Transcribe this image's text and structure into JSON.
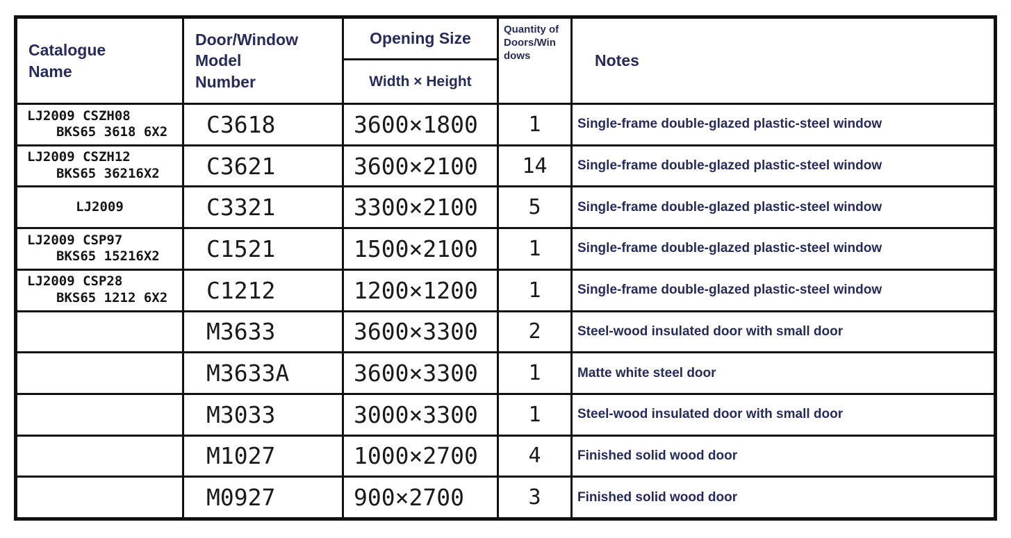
{
  "colors": {
    "header_text": "#272b5c",
    "notes_text": "#272b5c",
    "cad_text": "#1a1a1a",
    "border": "#111111",
    "background": "#ffffff"
  },
  "table": {
    "headers": {
      "catalogue_lines": [
        "Catalogue",
        "Name"
      ],
      "model_lines": [
        "Door/Window",
        "Model",
        "Number"
      ],
      "opening_size": "Opening Size",
      "width_height": "Width × Height",
      "quantity": "Quantity of Doors/Windows",
      "notes": "Notes"
    },
    "rows": [
      {
        "catalogue": [
          "LJ2009 CSZH08",
          "BKS65 3618 6X2"
        ],
        "model": "C3618",
        "size": "3600×1800",
        "qty": "1",
        "note": "Single-frame double-glazed plastic-steel window"
      },
      {
        "catalogue": [
          "LJ2009 CSZH12",
          "BKS65 36216X2"
        ],
        "model": "C3621",
        "size": "3600×2100",
        "qty": "14",
        "note": "Single-frame double-glazed plastic-steel window"
      },
      {
        "catalogue": [
          "LJ2009"
        ],
        "model": "C3321",
        "size": "3300×2100",
        "qty": "5",
        "note": "Single-frame double-glazed plastic-steel window"
      },
      {
        "catalogue": [
          "LJ2009 CSP97",
          "BKS65 15216X2"
        ],
        "model": "C1521",
        "size": "1500×2100",
        "qty": "1",
        "note": "Single-frame double-glazed plastic-steel window"
      },
      {
        "catalogue": [
          "LJ2009 CSP28",
          "BKS65 1212 6X2"
        ],
        "model": "C1212",
        "size": "1200×1200",
        "qty": "1",
        "note": "Single-frame double-glazed plastic-steel window"
      },
      {
        "catalogue": [],
        "model": "M3633",
        "size": "3600×3300",
        "qty": "2",
        "note": "Steel-wood insulated door with small door"
      },
      {
        "catalogue": [],
        "model": "M3633A",
        "size": "3600×3300",
        "qty": "1",
        "note": "Matte white steel door"
      },
      {
        "catalogue": [],
        "model": "M3033",
        "size": "3000×3300",
        "qty": "1",
        "note": "Steel-wood insulated door with small door"
      },
      {
        "catalogue": [],
        "model": "M1027",
        "size": "1000×2700",
        "qty": "4",
        "note": "Finished solid wood door"
      },
      {
        "catalogue": [],
        "model": "M0927",
        "size": "900×2700",
        "qty": "3",
        "note": "Finished solid wood door"
      }
    ]
  }
}
